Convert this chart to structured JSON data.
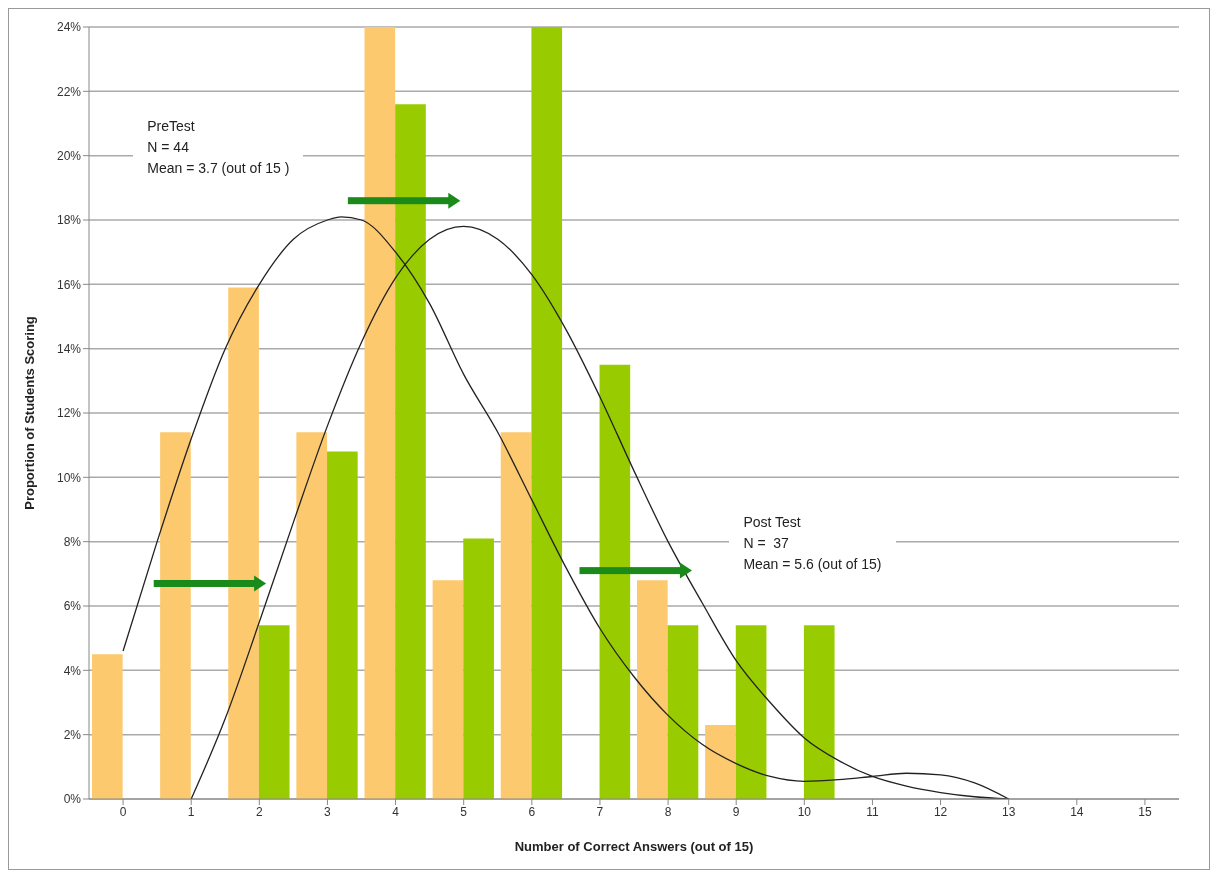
{
  "chart_data": {
    "type": "bar",
    "xlabel": "Number of Correct Answers (out of 15)",
    "ylabel": "Proportion of Students Scoring",
    "x": [
      0,
      1,
      2,
      3,
      4,
      5,
      6,
      7,
      8,
      9,
      10,
      11,
      12,
      13,
      14,
      15
    ],
    "xlim": [
      -0.5,
      15.5
    ],
    "xticks": [
      0,
      1,
      2,
      3,
      4,
      5,
      6,
      7,
      8,
      9,
      10,
      11,
      12,
      13,
      14,
      15
    ],
    "series": [
      {
        "color": "#fdc96f",
        "values": [
          4.5,
          11.4,
          15.9,
          11.4,
          24,
          6.8,
          11.4,
          0,
          6.8,
          2.3,
          0,
          0,
          0,
          0,
          0,
          0
        ]
      },
      {
        "color": "#99cc00",
        "values": [
          0,
          0,
          5.4,
          10.8,
          21.6,
          8.1,
          24,
          13.5,
          5.4,
          5.4,
          5.4,
          0,
          0,
          0,
          0,
          0
        ]
      },
      {
        "type": "line",
        "color": "#222222",
        "x": [
          0,
          0.5,
          1,
          1.5,
          2,
          2.5,
          3,
          3.2,
          3.5,
          4,
          4.5,
          5,
          5.5,
          6,
          6.5,
          7,
          7.5,
          8,
          8.5,
          9,
          9.5,
          10,
          10.5,
          11,
          11.5,
          12,
          12.5,
          13
        ],
        "values": [
          4.6,
          8,
          11.2,
          14,
          16,
          17.4,
          18,
          18.1,
          18,
          17,
          15.4,
          13.2,
          11.4,
          9.3,
          7.2,
          5.3,
          3.8,
          2.6,
          1.7,
          1.1,
          0.7,
          0.55,
          0.6,
          0.7,
          0.8,
          0.75,
          0.5,
          0
        ]
      },
      {
        "type": "line",
        "color": "#222222",
        "x": [
          1,
          1.5,
          2,
          2.5,
          3,
          3.5,
          4,
          4.5,
          5,
          5.5,
          6,
          6.5,
          7,
          7.5,
          8,
          8.5,
          9,
          9.5,
          10,
          10.5,
          11,
          11.5,
          12,
          12.5,
          13
        ],
        "values": [
          0,
          2.5,
          5.5,
          8.6,
          11.6,
          14.2,
          16.2,
          17.4,
          17.8,
          17.4,
          16.3,
          14.6,
          12.5,
          10.2,
          8,
          6.1,
          4.3,
          3,
          1.9,
          1.2,
          0.7,
          0.4,
          0.2,
          0.07,
          0
        ]
      }
    ],
    "ylim": [
      0,
      24
    ],
    "yticks": [
      {
        "value": 0,
        "label": "0%"
      },
      {
        "value": 2,
        "label": "2%"
      },
      {
        "value": 4,
        "label": "4%"
      },
      {
        "value": 6,
        "label": "6%"
      },
      {
        "value": 8,
        "label": "8%"
      },
      {
        "value": 10,
        "label": "10%"
      },
      {
        "value": 12,
        "label": "12%"
      },
      {
        "value": 14,
        "label": "14%"
      },
      {
        "value": 16,
        "label": "16%"
      },
      {
        "value": 18,
        "label": "18%"
      },
      {
        "value": 20,
        "label": "20%"
      },
      {
        "value": 22,
        "label": "22%"
      },
      {
        "value": 24,
        "label": "24%"
      }
    ],
    "annotations": [
      "PreTest\nN = 44\nMean = 3.7 (out of 15 )",
      "Post Test\nN =  37\nMean = 5.6 (out of 15)"
    ],
    "grid": "y",
    "marker": "none",
    "line_style": "solid"
  }
}
